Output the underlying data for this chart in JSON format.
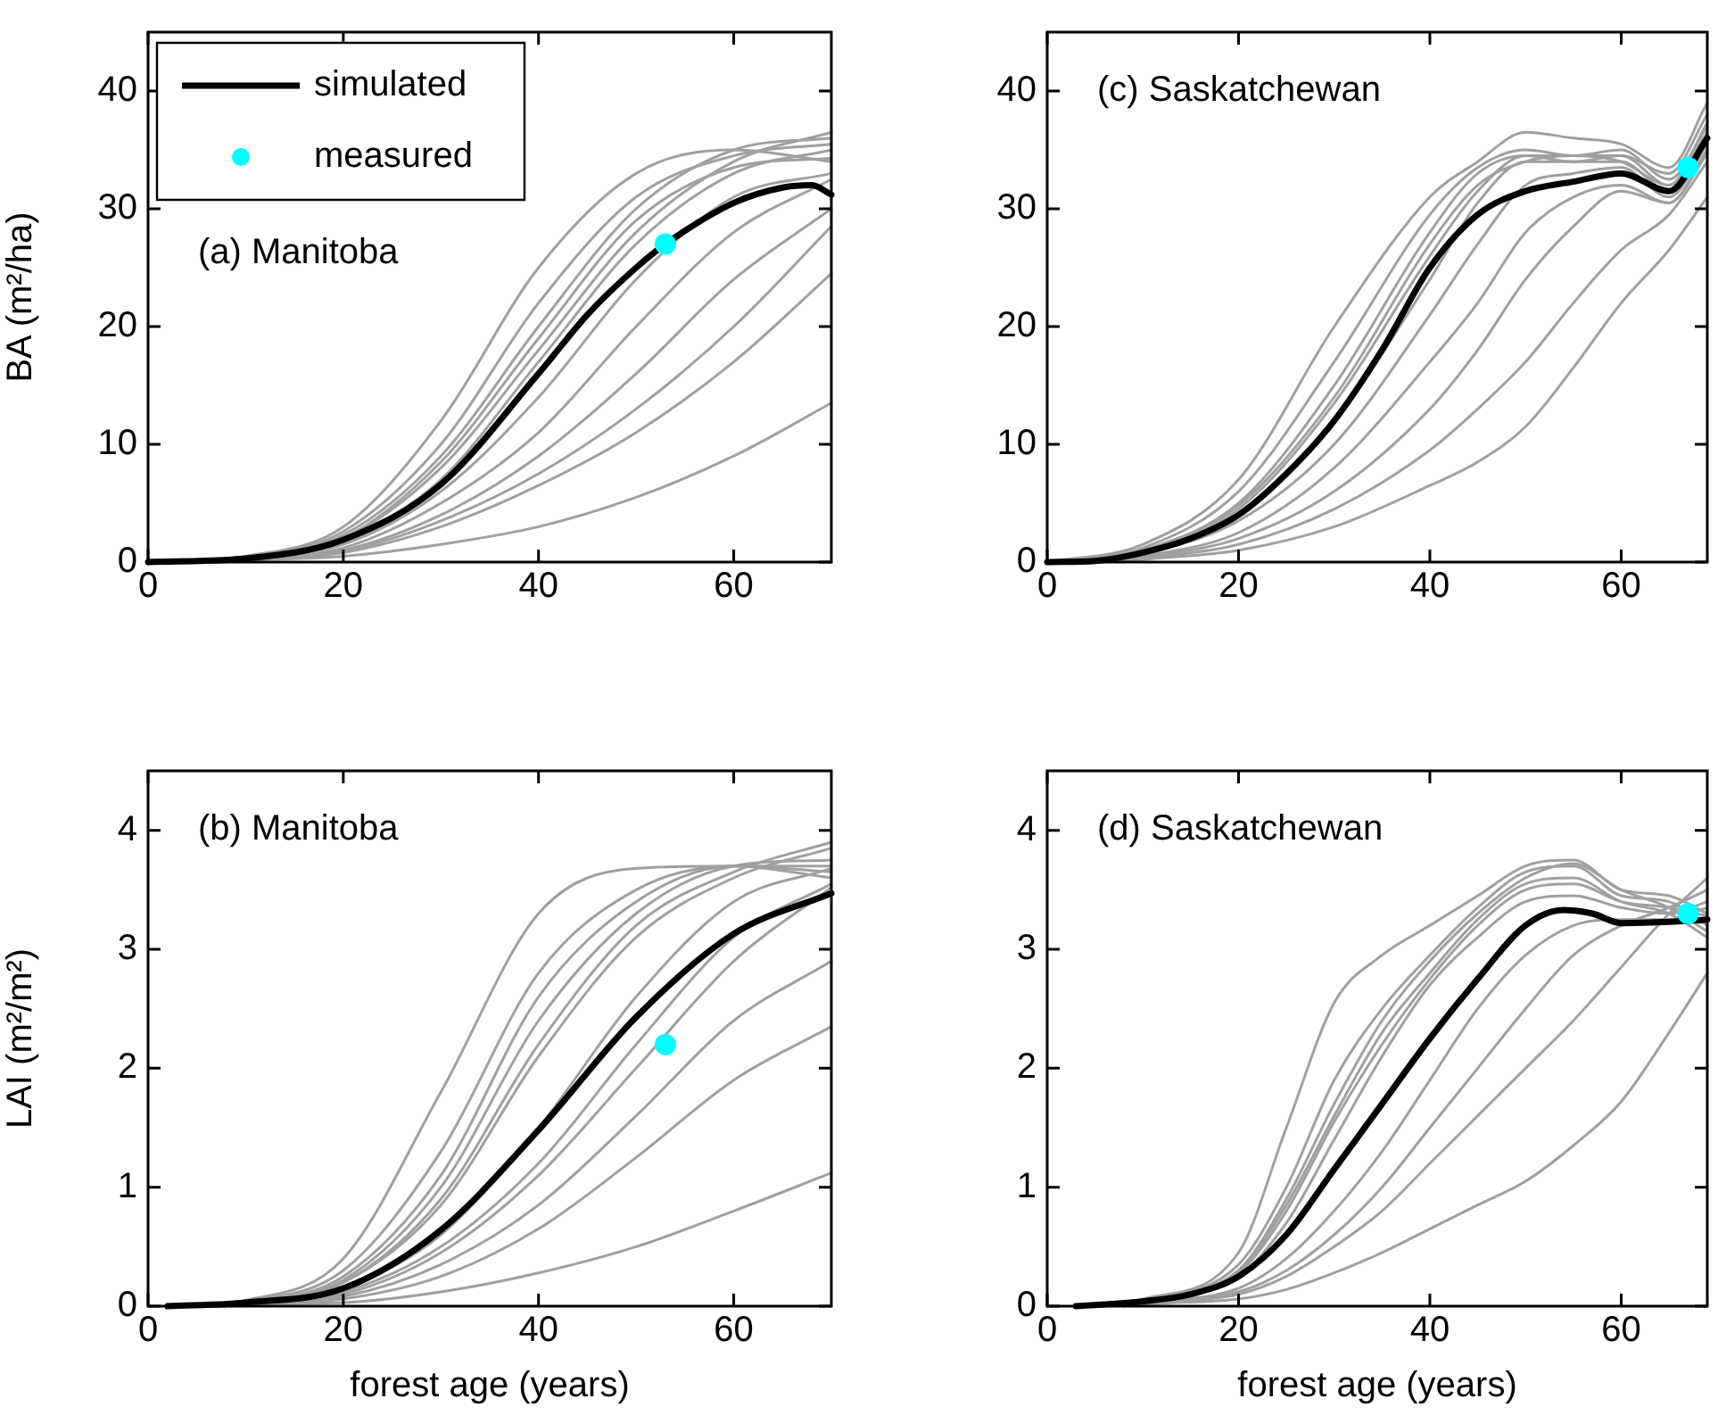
{
  "chart_data": [
    {
      "type": "line",
      "ylabel": "BA (m²/ha)",
      "annotations": [
        "(a) Manitoba"
      ],
      "legend": "top left",
      "xlim": [
        0,
        70
      ],
      "ylim": [
        0,
        45
      ],
      "xticks": [
        0,
        20,
        40,
        60
      ],
      "yticks": [
        0,
        10,
        20,
        30,
        40
      ],
      "series": [
        {
          "type": "line",
          "color": "#a0a0a0",
          "x": [
            0,
            10,
            20,
            30,
            40,
            50,
            60,
            70
          ],
          "values": [
            0,
            0.5,
            3,
            12,
            25,
            33,
            35,
            34
          ]
        },
        {
          "type": "line",
          "color": "#a0a0a0",
          "x": [
            0.8,
            10,
            20,
            30,
            40,
            50,
            60,
            70
          ],
          "values": [
            0,
            0.4,
            2.6,
            10,
            22,
            31,
            34.5,
            35.5
          ]
        },
        {
          "type": "line",
          "color": "#a0a0a0",
          "x": [
            1.6,
            10,
            20,
            30,
            40,
            50,
            60,
            70
          ],
          "values": [
            0,
            0.4,
            2.3,
            9,
            20,
            30,
            35,
            36
          ]
        },
        {
          "type": "line",
          "color": "#a0a0a0",
          "x": [
            2.4,
            10,
            20,
            30,
            40,
            50,
            60,
            70
          ],
          "values": [
            0,
            0.3,
            2,
            8,
            18,
            28,
            34,
            36.5
          ]
        },
        {
          "type": "line",
          "color": "#a0a0a0",
          "x": [
            3.2,
            10,
            20,
            30,
            40,
            50,
            60,
            70
          ],
          "values": [
            0,
            0.3,
            2,
            8.5,
            19,
            29,
            33.5,
            34.3
          ]
        },
        {
          "type": "line",
          "color": "#a0a0a0",
          "x": [
            4,
            10,
            20,
            30,
            40,
            50,
            60,
            70
          ],
          "values": [
            0,
            0.3,
            1.8,
            7,
            17,
            27,
            33,
            35
          ]
        },
        {
          "type": "line",
          "color": "#a0a0a0",
          "x": [
            4.8,
            10,
            20,
            30,
            40,
            50,
            60,
            70
          ],
          "values": [
            0,
            0.3,
            1.5,
            6,
            14,
            24,
            31,
            33
          ]
        },
        {
          "type": "line",
          "color": "#a0a0a0",
          "x": [
            5.6,
            10,
            20,
            30,
            40,
            50,
            60,
            70
          ],
          "values": [
            0,
            0.2,
            1.2,
            5,
            11,
            20,
            28,
            32.5
          ]
        },
        {
          "type": "line",
          "color": "#a0a0a0",
          "x": [
            6.4,
            10,
            20,
            30,
            40,
            50,
            60,
            70
          ],
          "values": [
            0,
            0.2,
            1,
            4,
            9,
            16,
            24,
            30
          ]
        },
        {
          "type": "line",
          "color": "#a0a0a0",
          "x": [
            7.2,
            10,
            20,
            30,
            40,
            50,
            60,
            70
          ],
          "values": [
            0,
            0.2,
            0.9,
            3.5,
            7.5,
            13,
            20,
            28.5
          ]
        },
        {
          "type": "line",
          "color": "#a0a0a0",
          "x": [
            8,
            10,
            20,
            30,
            40,
            50,
            60,
            70
          ],
          "values": [
            0,
            0.2,
            0.8,
            3,
            6.5,
            11,
            17,
            24.5
          ]
        },
        {
          "type": "line",
          "color": "#a0a0a0",
          "x": [
            8.8,
            10,
            20,
            30,
            40,
            50,
            60,
            70
          ],
          "values": [
            0,
            0.1,
            0.5,
            1.5,
            3,
            5.5,
            9,
            13.5
          ]
        },
        {
          "type": "line",
          "name": "simulated",
          "color": "#000000",
          "x": [
            0,
            10,
            20,
            30,
            40,
            45,
            50,
            53,
            60,
            65,
            68,
            70
          ],
          "values": [
            0,
            0.3,
            1.9,
            6.6,
            16,
            21,
            25,
            27,
            30.5,
            31.8,
            32,
            31.2
          ]
        },
        {
          "type": "scatter",
          "name": "measured",
          "color": "#00ffff",
          "marker": "circle",
          "x": [
            53
          ],
          "values": [
            27
          ]
        }
      ]
    },
    {
      "type": "line",
      "annotations": [
        "(c) Saskatchewan"
      ],
      "xlim": [
        0,
        69
      ],
      "ylim": [
        0,
        45
      ],
      "xticks": [
        0,
        20,
        40,
        60
      ],
      "yticks": [
        0,
        10,
        20,
        30,
        40
      ],
      "series": [
        {
          "type": "line",
          "color": "#a0a0a0",
          "x": [
            0,
            10,
            20,
            30,
            40,
            45,
            50,
            55,
            60,
            65,
            69
          ],
          "values": [
            0,
            1.5,
            7,
            20,
            31,
            34,
            36.5,
            36,
            35.5,
            33.5,
            39
          ]
        },
        {
          "type": "line",
          "color": "#a0a0a0",
          "x": [
            0.8,
            10,
            20,
            30,
            40,
            45,
            50,
            55,
            60,
            65,
            69
          ],
          "values": [
            0,
            1.2,
            6,
            17,
            29.5,
            33.5,
            35,
            34.5,
            34.5,
            33,
            38
          ]
        },
        {
          "type": "line",
          "color": "#a0a0a0",
          "x": [
            1.6,
            10,
            20,
            30,
            40,
            45,
            50,
            55,
            60,
            65,
            69
          ],
          "values": [
            0,
            1,
            5,
            15,
            28,
            33,
            34.5,
            34.5,
            35,
            32.5,
            37
          ]
        },
        {
          "type": "line",
          "color": "#a0a0a0",
          "x": [
            2.4,
            10,
            20,
            30,
            40,
            45,
            50,
            55,
            60,
            65,
            69
          ],
          "values": [
            0,
            1,
            4.8,
            14,
            27,
            32,
            34,
            34.5,
            34,
            32,
            36.5
          ]
        },
        {
          "type": "line",
          "color": "#a0a0a0",
          "x": [
            3.2,
            10,
            20,
            30,
            40,
            45,
            50,
            55,
            60,
            65,
            69
          ],
          "values": [
            0,
            0.9,
            4.5,
            13.5,
            26,
            31.5,
            34.5,
            34,
            34.5,
            32,
            37.3
          ]
        },
        {
          "type": "line",
          "color": "#a0a0a0",
          "x": [
            4,
            10,
            20,
            30,
            40,
            45,
            50,
            55,
            60,
            65,
            69
          ],
          "values": [
            0,
            0.8,
            4,
            12,
            24,
            30.5,
            34,
            34,
            34,
            31.5,
            36
          ]
        },
        {
          "type": "line",
          "color": "#a0a0a0",
          "x": [
            4.8,
            10,
            20,
            30,
            40,
            45,
            50,
            55,
            60,
            65,
            69
          ],
          "values": [
            0,
            0.7,
            3.5,
            10,
            21,
            27,
            32,
            33,
            33.5,
            31,
            35.5
          ]
        },
        {
          "type": "line",
          "color": "#a0a0a0",
          "x": [
            5.6,
            10,
            20,
            30,
            40,
            45,
            50,
            55,
            60,
            65,
            69
          ],
          "values": [
            0,
            0.5,
            2.5,
            8,
            17,
            22,
            28,
            31,
            32,
            30.5,
            35
          ]
        },
        {
          "type": "line",
          "color": "#a0a0a0",
          "x": [
            6.4,
            10,
            20,
            30,
            40,
            45,
            50,
            55,
            60,
            65,
            69
          ],
          "values": [
            0,
            0.4,
            2,
            6,
            13,
            18,
            24,
            28.5,
            31.5,
            30.5,
            34.7
          ]
        },
        {
          "type": "line",
          "color": "#a0a0a0",
          "x": [
            7.2,
            10,
            20,
            30,
            40,
            45,
            50,
            55,
            60,
            65,
            69
          ],
          "values": [
            0,
            0.3,
            1.5,
            4.5,
            9.5,
            13,
            17,
            22,
            26.5,
            29.5,
            34
          ]
        },
        {
          "type": "line",
          "color": "#a0a0a0",
          "x": [
            8,
            10,
            20,
            30,
            40,
            45,
            50,
            55,
            60,
            65,
            69
          ],
          "values": [
            0,
            0.2,
            1,
            3,
            6.5,
            8.5,
            11.5,
            16.5,
            22,
            26.5,
            31
          ]
        },
        {
          "type": "line",
          "color": "#000000",
          "x": [
            0,
            5,
            10,
            15,
            20,
            25,
            30,
            35,
            40,
            45,
            50,
            55,
            60,
            65,
            69
          ],
          "values": [
            0,
            0.1,
            0.8,
            2,
            4,
            7.5,
            12,
            18,
            25,
            29.5,
            31.5,
            32.3,
            33,
            31.5,
            36
          ]
        },
        {
          "type": "scatter",
          "color": "#00ffff",
          "marker": "circle",
          "x": [
            67
          ],
          "values": [
            33.5
          ]
        }
      ]
    },
    {
      "type": "line",
      "ylabel": "LAI (m²/m²)",
      "xlabel": "forest age (years)",
      "annotations": [
        "(b) Manitoba"
      ],
      "xlim": [
        0,
        70
      ],
      "ylim": [
        0,
        4.5
      ],
      "xticks": [
        0,
        20,
        40,
        60
      ],
      "yticks": [
        0,
        1,
        2,
        3,
        4
      ],
      "series": [
        {
          "type": "line",
          "color": "#a0a0a0",
          "x": [
            2,
            10,
            20,
            30,
            40,
            50,
            60,
            70
          ],
          "values": [
            0,
            0.05,
            0.4,
            1.8,
            3.3,
            3.68,
            3.7,
            3.65
          ]
        },
        {
          "type": "line",
          "color": "#a0a0a0",
          "x": [
            2.65,
            10,
            20,
            30,
            40,
            50,
            60,
            70
          ],
          "values": [
            0,
            0.04,
            0.3,
            1.3,
            2.8,
            3.5,
            3.7,
            3.7
          ]
        },
        {
          "type": "line",
          "color": "#a0a0a0",
          "x": [
            3.3,
            10,
            20,
            30,
            40,
            50,
            60,
            70
          ],
          "values": [
            0,
            0.03,
            0.25,
            1.1,
            2.6,
            3.4,
            3.7,
            3.6
          ]
        },
        {
          "type": "line",
          "color": "#a0a0a0",
          "x": [
            3.95,
            10,
            20,
            30,
            40,
            50,
            60,
            70
          ],
          "values": [
            0,
            0.03,
            0.22,
            1,
            2.4,
            3.3,
            3.7,
            3.75
          ]
        },
        {
          "type": "line",
          "color": "#a0a0a0",
          "x": [
            4.6,
            10,
            20,
            30,
            40,
            50,
            60,
            70
          ],
          "values": [
            0,
            0.03,
            0.2,
            0.9,
            2.2,
            3.2,
            3.65,
            3.9
          ]
        },
        {
          "type": "line",
          "color": "#a0a0a0",
          "x": [
            5.25,
            10,
            20,
            30,
            40,
            50,
            60,
            70
          ],
          "values": [
            0,
            0.03,
            0.2,
            0.85,
            2.1,
            3.1,
            3.6,
            3.85
          ]
        },
        {
          "type": "line",
          "color": "#a0a0a0",
          "x": [
            5.9,
            10,
            20,
            30,
            40,
            50,
            60,
            70
          ],
          "values": [
            0,
            0.02,
            0.15,
            0.6,
            1.5,
            2.6,
            3.4,
            3.68
          ]
        },
        {
          "type": "line",
          "color": "#a0a0a0",
          "x": [
            6.55,
            10,
            20,
            30,
            40,
            50,
            60,
            70
          ],
          "values": [
            0,
            0.02,
            0.12,
            0.5,
            1.2,
            2.2,
            3.1,
            3.55
          ]
        },
        {
          "type": "line",
          "color": "#a0a0a0",
          "x": [
            7.2,
            10,
            20,
            30,
            40,
            50,
            60,
            70
          ],
          "values": [
            0,
            0.02,
            0.1,
            0.45,
            1.1,
            2,
            2.9,
            3.52
          ]
        },
        {
          "type": "line",
          "color": "#a0a0a0",
          "x": [
            7.85,
            10,
            20,
            30,
            40,
            50,
            60,
            70
          ],
          "values": [
            0,
            0.01,
            0.08,
            0.35,
            0.85,
            1.6,
            2.4,
            2.9
          ]
        },
        {
          "type": "line",
          "color": "#a0a0a0",
          "x": [
            8.5,
            10,
            20,
            30,
            40,
            50,
            60,
            70
          ],
          "values": [
            0,
            0.01,
            0.06,
            0.25,
            0.65,
            1.25,
            1.9,
            2.35
          ]
        },
        {
          "type": "line",
          "color": "#a0a0a0",
          "x": [
            9.15,
            10,
            20,
            30,
            40,
            50,
            60,
            70
          ],
          "values": [
            0,
            0.01,
            0.03,
            0.12,
            0.28,
            0.5,
            0.8,
            1.12
          ]
        },
        {
          "type": "line",
          "color": "#000000",
          "x": [
            2,
            10,
            20,
            30,
            40,
            50,
            60,
            70
          ],
          "values": [
            0,
            0.03,
            0.15,
            0.64,
            1.48,
            2.43,
            3.13,
            3.47
          ]
        },
        {
          "type": "scatter",
          "color": "#00ffff",
          "marker": "circle",
          "x": [
            53
          ],
          "values": [
            2.2
          ]
        }
      ]
    },
    {
      "type": "line",
      "xlabel": "forest age (years)",
      "annotations": [
        "(d) Saskatchewan"
      ],
      "xlim": [
        0,
        69
      ],
      "ylim": [
        0,
        4.5
      ],
      "xticks": [
        0,
        20,
        40,
        60
      ],
      "yticks": [
        0,
        1,
        2,
        3,
        4
      ],
      "series": [
        {
          "type": "line",
          "color": "#a0a0a0",
          "x": [
            3,
            10,
            20,
            25,
            30,
            35,
            40,
            45,
            50,
            55,
            60,
            65,
            69
          ],
          "values": [
            0,
            0.06,
            0.45,
            1.5,
            2.55,
            2.95,
            3.2,
            3.45,
            3.7,
            3.75,
            3.5,
            3.45,
            3.3
          ]
        },
        {
          "type": "line",
          "color": "#a0a0a0",
          "x": [
            3.7,
            10,
            20,
            25,
            30,
            35,
            40,
            45,
            50,
            55,
            60,
            65,
            69
          ],
          "values": [
            0,
            0.05,
            0.35,
            1,
            1.9,
            2.5,
            2.95,
            3.35,
            3.65,
            3.7,
            3.45,
            3.4,
            3.2
          ]
        },
        {
          "type": "line",
          "color": "#a0a0a0",
          "x": [
            4.4,
            10,
            20,
            25,
            30,
            35,
            40,
            45,
            50,
            55,
            60,
            65,
            69
          ],
          "values": [
            0,
            0.05,
            0.3,
            0.9,
            1.7,
            2.4,
            2.9,
            3.3,
            3.6,
            3.72,
            3.5,
            3.35,
            3.15
          ]
        },
        {
          "type": "line",
          "color": "#a0a0a0",
          "x": [
            5.1,
            10,
            20,
            25,
            30,
            35,
            40,
            45,
            50,
            55,
            60,
            65,
            69
          ],
          "values": [
            0,
            0.05,
            0.3,
            0.85,
            1.6,
            2.3,
            2.8,
            3.25,
            3.55,
            3.6,
            3.4,
            3.3,
            3.1
          ]
        },
        {
          "type": "line",
          "color": "#a0a0a0",
          "x": [
            5.8,
            10,
            20,
            25,
            30,
            35,
            40,
            45,
            50,
            55,
            60,
            65,
            69
          ],
          "values": [
            0,
            0.04,
            0.28,
            0.8,
            1.55,
            2.2,
            2.75,
            3.2,
            3.5,
            3.55,
            3.4,
            3.35,
            3.28
          ]
        },
        {
          "type": "line",
          "color": "#a0a0a0",
          "x": [
            6.5,
            10,
            20,
            25,
            30,
            35,
            40,
            45,
            50,
            55,
            60,
            65,
            69
          ],
          "values": [
            0,
            0.04,
            0.25,
            0.7,
            1.4,
            2.1,
            2.7,
            3.1,
            3.4,
            3.45,
            3.35,
            3.3,
            3.4
          ]
        },
        {
          "type": "line",
          "color": "#a0a0a0",
          "x": [
            7.2,
            10,
            20,
            25,
            30,
            35,
            40,
            45,
            50,
            55,
            60,
            65,
            69
          ],
          "values": [
            0,
            0.03,
            0.15,
            0.4,
            0.8,
            1.3,
            1.9,
            2.5,
            2.95,
            3.2,
            3.25,
            3.25,
            3.35
          ]
        },
        {
          "type": "line",
          "color": "#a0a0a0",
          "x": [
            7.9,
            10,
            20,
            25,
            30,
            35,
            40,
            45,
            50,
            55,
            60,
            65,
            69
          ],
          "values": [
            0,
            0.02,
            0.12,
            0.3,
            0.6,
            1,
            1.5,
            2,
            2.5,
            2.95,
            3.2,
            3.35,
            3.5
          ]
        },
        {
          "type": "line",
          "color": "#a0a0a0",
          "x": [
            8.6,
            10,
            20,
            25,
            30,
            35,
            40,
            45,
            50,
            55,
            60,
            65,
            69
          ],
          "values": [
            0,
            0.02,
            0.1,
            0.25,
            0.5,
            0.8,
            1.2,
            1.6,
            2,
            2.4,
            2.85,
            3.3,
            3.6
          ]
        },
        {
          "type": "line",
          "color": "#a0a0a0",
          "x": [
            9.3,
            10,
            20,
            25,
            30,
            35,
            40,
            45,
            50,
            55,
            60,
            65,
            69
          ],
          "values": [
            0,
            0.01,
            0.06,
            0.14,
            0.28,
            0.45,
            0.65,
            0.85,
            1.05,
            1.35,
            1.72,
            2.3,
            2.8
          ]
        },
        {
          "type": "line",
          "color": "#000000",
          "x": [
            3,
            10,
            15,
            20,
            25,
            30,
            35,
            40,
            45,
            50,
            54,
            57,
            60,
            65,
            69
          ],
          "values": [
            0,
            0.04,
            0.1,
            0.25,
            0.6,
            1.15,
            1.7,
            2.25,
            2.75,
            3.2,
            3.33,
            3.3,
            3.22,
            3.23,
            3.25
          ]
        },
        {
          "type": "scatter",
          "color": "#00ffff",
          "marker": "circle",
          "x": [
            67
          ],
          "values": [
            3.3
          ]
        }
      ]
    }
  ]
}
